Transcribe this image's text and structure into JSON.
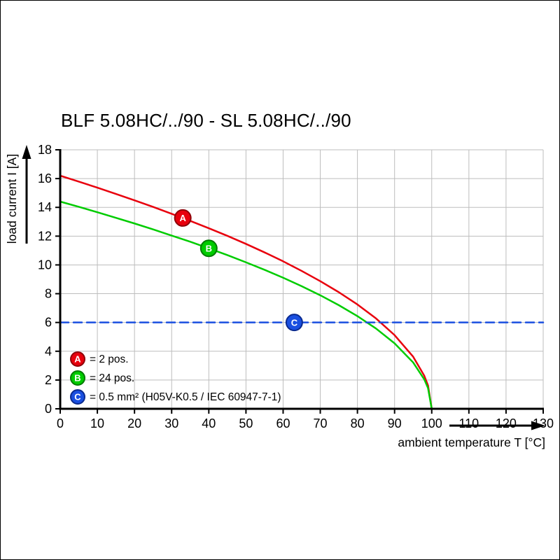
{
  "chart_data": {
    "type": "line",
    "title": "BLF 5.08HC/../90 - SL 5.08HC/../90",
    "xlabel": "ambient temperature T [°C]",
    "ylabel": "load current I [A]",
    "xlim": [
      0,
      130
    ],
    "ylim": [
      0,
      18
    ],
    "xticks": [
      0,
      10,
      20,
      30,
      40,
      50,
      60,
      70,
      80,
      90,
      100,
      110,
      120,
      130
    ],
    "yticks": [
      0,
      2,
      4,
      6,
      8,
      10,
      12,
      14,
      16,
      18
    ],
    "grid": true,
    "grid_color": "#bdbdbd",
    "axis_color": "#000000",
    "legend_position": "lower-left-inside",
    "series": [
      {
        "name": "A",
        "label": "2 pos.",
        "color": "#e8000d",
        "style": "solid",
        "points": [
          [
            0,
            16.2
          ],
          [
            5,
            15.79
          ],
          [
            10,
            15.37
          ],
          [
            15,
            14.93
          ],
          [
            20,
            14.49
          ],
          [
            25,
            14.03
          ],
          [
            30,
            13.55
          ],
          [
            35,
            13.06
          ],
          [
            40,
            12.55
          ],
          [
            45,
            12.02
          ],
          [
            50,
            11.46
          ],
          [
            55,
            10.87
          ],
          [
            60,
            10.25
          ],
          [
            65,
            9.58
          ],
          [
            70,
            8.87
          ],
          [
            75,
            8.1
          ],
          [
            80,
            7.25
          ],
          [
            85,
            6.28
          ],
          [
            90,
            5.12
          ],
          [
            95,
            3.62
          ],
          [
            98,
            2.29
          ],
          [
            99,
            1.62
          ],
          [
            100,
            0
          ]
        ]
      },
      {
        "name": "B",
        "label": "24 pos.",
        "color": "#00cc00",
        "style": "solid",
        "points": [
          [
            0,
            14.4
          ],
          [
            5,
            14.04
          ],
          [
            10,
            13.66
          ],
          [
            15,
            13.27
          ],
          [
            20,
            12.88
          ],
          [
            25,
            12.47
          ],
          [
            30,
            12.04
          ],
          [
            35,
            11.61
          ],
          [
            40,
            11.15
          ],
          [
            45,
            10.68
          ],
          [
            50,
            10.18
          ],
          [
            55,
            9.66
          ],
          [
            60,
            9.11
          ],
          [
            65,
            8.52
          ],
          [
            70,
            7.89
          ],
          [
            75,
            7.2
          ],
          [
            80,
            6.44
          ],
          [
            85,
            5.58
          ],
          [
            90,
            4.55
          ],
          [
            95,
            3.22
          ],
          [
            98,
            2.04
          ],
          [
            99,
            1.44
          ],
          [
            100,
            0
          ]
        ]
      },
      {
        "name": "C",
        "label": "0.5 mm² (H05V-K0.5 / IEC 60947-7-1)",
        "color": "#1a4fe0",
        "style": "dashed",
        "points": [
          [
            0,
            6
          ],
          [
            130,
            6
          ]
        ]
      }
    ],
    "markers": [
      {
        "letter": "A",
        "x": 33,
        "y": 13.26,
        "fill": "#e8000d",
        "ring": "#8f0008"
      },
      {
        "letter": "B",
        "x": 40,
        "y": 11.15,
        "fill": "#00cc00",
        "ring": "#007a00"
      },
      {
        "letter": "C",
        "x": 63,
        "y": 6,
        "fill": "#1a4fe0",
        "ring": "#0a2a8f"
      }
    ],
    "legend": [
      {
        "letter": "A",
        "fill": "#e8000d",
        "ring": "#8f0008",
        "text": "= 2 pos."
      },
      {
        "letter": "B",
        "fill": "#00cc00",
        "ring": "#007a00",
        "text": "= 24 pos."
      },
      {
        "letter": "C",
        "fill": "#1a4fe0",
        "ring": "#0a2a8f",
        "text": "= 0.5 mm² (H05V-K0.5 / IEC 60947-7-1)"
      }
    ]
  }
}
